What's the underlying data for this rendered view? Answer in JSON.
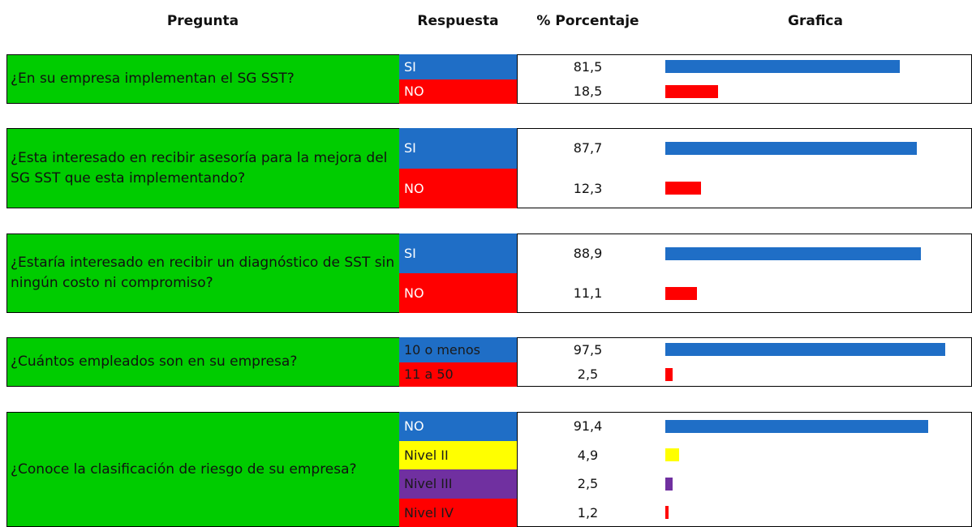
{
  "header": {
    "question": "Pregunta",
    "answer": "Respuesta",
    "percent": "% Porcentaje",
    "chart": "Grafica"
  },
  "questions": [
    {
      "text": "¿En su empresa implementan el SG SST?",
      "answers": [
        {
          "label": "SI",
          "value": 81.5,
          "value_label": "81,5",
          "color": "#1f6ec6",
          "text_color": "#ffffff"
        },
        {
          "label": "NO",
          "value": 18.5,
          "value_label": "18,5",
          "color": "#ff0000",
          "text_color": "#ffffff"
        }
      ]
    },
    {
      "text": "¿Esta interesado en recibir asesoría para la mejora del SG SST que esta implementando?",
      "answers": [
        {
          "label": "SI",
          "value": 87.7,
          "value_label": "87,7",
          "color": "#1f6ec6",
          "text_color": "#ffffff"
        },
        {
          "label": "NO",
          "value": 12.3,
          "value_label": "12,3",
          "color": "#ff0000",
          "text_color": "#ffffff"
        }
      ]
    },
    {
      "text": "¿Estaría interesado en recibir un diagnóstico de SST sin ningún costo ni compromiso?",
      "answers": [
        {
          "label": "SI",
          "value": 88.9,
          "value_label": "88,9",
          "color": "#1f6ec6",
          "text_color": "#ffffff"
        },
        {
          "label": "NO",
          "value": 11.1,
          "value_label": "11,1",
          "color": "#ff0000",
          "text_color": "#ffffff"
        }
      ]
    },
    {
      "text": "¿Cuántos empleados son en su empresa?",
      "answers": [
        {
          "label": "10 o menos",
          "value": 97.5,
          "value_label": "97,5",
          "color": "#1f6ec6",
          "text_color": "#1a1a1a"
        },
        {
          "label": "11 a 50",
          "value": 2.5,
          "value_label": "2,5",
          "color": "#ff0000",
          "text_color": "#1a1a1a"
        }
      ]
    },
    {
      "text": "¿Conoce la clasificación de riesgo de su empresa?",
      "answers": [
        {
          "label": "NO",
          "value": 91.4,
          "value_label": "91,4",
          "color": "#1f6ec6",
          "text_color": "#ffffff"
        },
        {
          "label": "Nivel II",
          "value": 4.9,
          "value_label": "4,9",
          "color": "#ffff00",
          "text_color": "#1a1a1a"
        },
        {
          "label": "Nivel III",
          "value": 2.5,
          "value_label": "2,5",
          "color": "#7030a0",
          "text_color": "#1a1a1a"
        },
        {
          "label": "Nivel IV",
          "value": 1.2,
          "value_label": "1,2",
          "color": "#ff0000",
          "text_color": "#1a1a1a"
        }
      ]
    }
  ]
}
